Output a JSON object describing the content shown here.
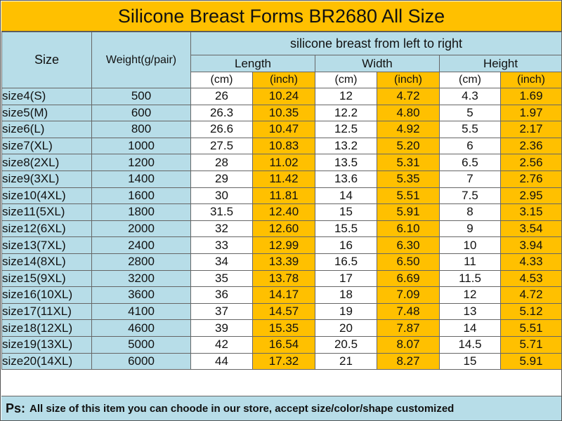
{
  "title": "Silicone Breast Forms BR2680 All Size",
  "header": {
    "size": "Size",
    "weight": "Weight(g/pair)",
    "group": "silicone breast from left to right",
    "length": "Length",
    "width": "Width",
    "height": "Height",
    "unit_cm": "(cm)",
    "unit_inch": "(inch)"
  },
  "rows": [
    {
      "size": "size4(S)",
      "weight": "500",
      "length_cm": "26",
      "length_in": "10.24",
      "width_cm": "12",
      "width_in": "4.72",
      "height_cm": "4.3",
      "height_in": "1.69"
    },
    {
      "size": "size5(M)",
      "weight": "600",
      "length_cm": "26.3",
      "length_in": "10.35",
      "width_cm": "12.2",
      "width_in": "4.80",
      "height_cm": "5",
      "height_in": "1.97"
    },
    {
      "size": "size6(L)",
      "weight": "800",
      "length_cm": "26.6",
      "length_in": "10.47",
      "width_cm": "12.5",
      "width_in": "4.92",
      "height_cm": "5.5",
      "height_in": "2.17"
    },
    {
      "size": "size7(XL)",
      "weight": "1000",
      "length_cm": "27.5",
      "length_in": "10.83",
      "width_cm": "13.2",
      "width_in": "5.20",
      "height_cm": "6",
      "height_in": "2.36"
    },
    {
      "size": "size8(2XL)",
      "weight": "1200",
      "length_cm": "28",
      "length_in": "11.02",
      "width_cm": "13.5",
      "width_in": "5.31",
      "height_cm": "6.5",
      "height_in": "2.56"
    },
    {
      "size": "size9(3XL)",
      "weight": "1400",
      "length_cm": "29",
      "length_in": "11.42",
      "width_cm": "13.6",
      "width_in": "5.35",
      "height_cm": "7",
      "height_in": "2.76"
    },
    {
      "size": "size10(4XL)",
      "weight": "1600",
      "length_cm": "30",
      "length_in": "11.81",
      "width_cm": "14",
      "width_in": "5.51",
      "height_cm": "7.5",
      "height_in": "2.95"
    },
    {
      "size": "size11(5XL)",
      "weight": "1800",
      "length_cm": "31.5",
      "length_in": "12.40",
      "width_cm": "15",
      "width_in": "5.91",
      "height_cm": "8",
      "height_in": "3.15"
    },
    {
      "size": "size12(6XL)",
      "weight": "2000",
      "length_cm": "32",
      "length_in": "12.60",
      "width_cm": "15.5",
      "width_in": "6.10",
      "height_cm": "9",
      "height_in": "3.54"
    },
    {
      "size": "size13(7XL)",
      "weight": "2400",
      "length_cm": "33",
      "length_in": "12.99",
      "width_cm": "16",
      "width_in": "6.30",
      "height_cm": "10",
      "height_in": "3.94"
    },
    {
      "size": "size14(8XL)",
      "weight": "2800",
      "length_cm": "34",
      "length_in": "13.39",
      "width_cm": "16.5",
      "width_in": "6.50",
      "height_cm": "11",
      "height_in": "4.33"
    },
    {
      "size": "size15(9XL)",
      "weight": "3200",
      "length_cm": "35",
      "length_in": "13.78",
      "width_cm": "17",
      "width_in": "6.69",
      "height_cm": "11.5",
      "height_in": "4.53"
    },
    {
      "size": "size16(10XL)",
      "weight": "3600",
      "length_cm": "36",
      "length_in": "14.17",
      "width_cm": "18",
      "width_in": "7.09",
      "height_cm": "12",
      "height_in": "4.72"
    },
    {
      "size": "size17(11XL)",
      "weight": "4100",
      "length_cm": "37",
      "length_in": "14.57",
      "width_cm": "19",
      "width_in": "7.48",
      "height_cm": "13",
      "height_in": "5.12"
    },
    {
      "size": "size18(12XL)",
      "weight": "4600",
      "length_cm": "39",
      "length_in": "15.35",
      "width_cm": "20",
      "width_in": "7.87",
      "height_cm": "14",
      "height_in": "5.51"
    },
    {
      "size": "size19(13XL)",
      "weight": "5000",
      "length_cm": "42",
      "length_in": "16.54",
      "width_cm": "20.5",
      "width_in": "8.07",
      "height_cm": "14.5",
      "height_in": "5.71"
    },
    {
      "size": "size20(14XL)",
      "weight": "6000",
      "length_cm": "44",
      "length_in": "17.32",
      "width_cm": "21",
      "width_in": "8.27",
      "height_cm": "15",
      "height_in": "5.91"
    }
  ],
  "footer": {
    "label": "Ps:",
    "note": "All size of this item you can choode in our store, accept size/color/shape customized"
  },
  "colors": {
    "accent": "#ffc000",
    "header_blue": "#b7dde8",
    "cell_white": "#ffffff"
  }
}
